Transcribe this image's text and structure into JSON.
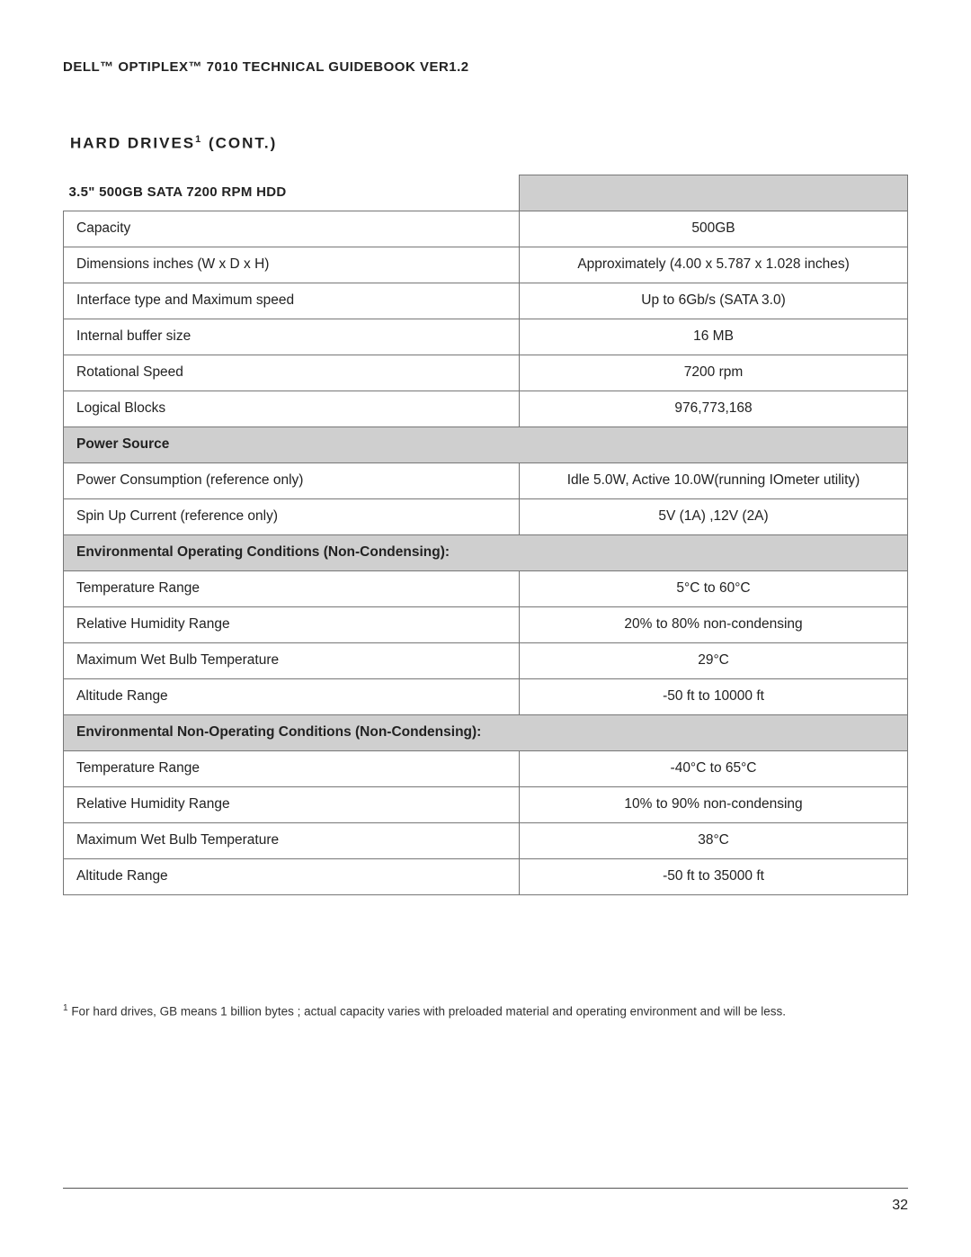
{
  "header": "DELL™ OPTIPLEX™ 7010 TECHNICAL GUIDEBOOK VER1.2",
  "section_title_pre": "HARD DRIVES",
  "section_title_sup": "1",
  "section_title_post": " (CONT.)",
  "table": {
    "title": "3.5\" 500GB SATA 7200 RPM HDD",
    "groups": [
      {
        "header": null,
        "rows": [
          {
            "label": "Capacity",
            "value": "500GB"
          },
          {
            "label": "Dimensions inches (W x D x H)",
            "value": "Approximately (4.00 x 5.787 x 1.028 inches)"
          },
          {
            "label": "Interface type and Maximum speed",
            "value": "Up to 6Gb/s (SATA 3.0)"
          },
          {
            "label": "Internal buffer size",
            "value": "16 MB"
          },
          {
            "label": "Rotational Speed",
            "value": "7200 rpm"
          },
          {
            "label": "Logical Blocks",
            "value": "976,773,168"
          }
        ]
      },
      {
        "header": "Power Source",
        "rows": [
          {
            "label": "Power Consumption (reference only)",
            "value": "Idle 5.0W, Active 10.0W(running IOmeter utility)"
          },
          {
            "label": "Spin Up Current (reference only)",
            "value": "5V (1A) ,12V (2A)"
          }
        ]
      },
      {
        "header": "Environmental Operating Conditions (Non-Condensing):",
        "rows": [
          {
            "label": "Temperature Range",
            "value": "5°C to 60°C"
          },
          {
            "label": "Relative Humidity Range",
            "value": "20% to 80% non-condensing"
          },
          {
            "label": "Maximum Wet Bulb Temperature",
            "value": "29°C"
          },
          {
            "label": "Altitude Range",
            "value": "-50 ft to 10000 ft"
          }
        ]
      },
      {
        "header": "Environmental Non-Operating Conditions (Non-Condensing):",
        "rows": [
          {
            "label": "Temperature Range",
            "value": "-40°C to 65°C"
          },
          {
            "label": "Relative Humidity Range",
            "value": "10% to 90% non-condensing"
          },
          {
            "label": "Maximum Wet Bulb Temperature",
            "value": "38°C"
          },
          {
            "label": "Altitude Range",
            "value": "-50 ft to 35000 ft"
          }
        ]
      }
    ]
  },
  "footnote_sup": "1",
  "footnote_text": " For hard drives, GB means 1 billion bytes ; actual capacity varies with preloaded material and operating environment and will be less.",
  "page_number": "32",
  "colors": {
    "header_bg": "#cfcfcf",
    "border": "#777777",
    "text": "#222222",
    "page_bg": "#ffffff"
  }
}
